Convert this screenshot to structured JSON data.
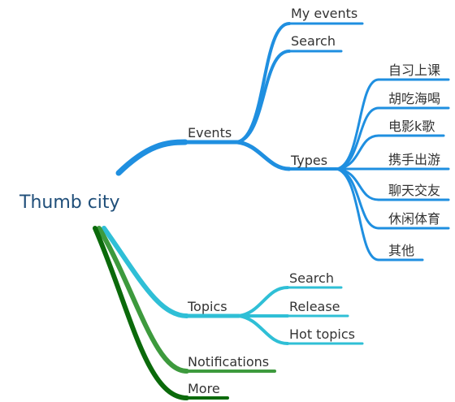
{
  "mindmap": {
    "root": "Thumb city",
    "colors": {
      "events": "#1f8fe0",
      "topics": "#2fbfd6",
      "notifications": "#3d9a3d",
      "more": "#0b6a0b"
    },
    "branches": {
      "events": {
        "label": "Events",
        "children": {
          "my_events": "My events",
          "search": "Search",
          "types": {
            "label": "Types",
            "children": [
              "自习上课",
              "胡吃海喝",
              "电影k歌",
              "携手出游",
              "聊天交友",
              "休闲体育",
              "其他"
            ]
          }
        }
      },
      "topics": {
        "label": "Topics",
        "children": [
          "Search",
          "Release",
          "Hot topics"
        ]
      },
      "notifications": {
        "label": "Notifications"
      },
      "more": {
        "label": "More"
      }
    }
  }
}
